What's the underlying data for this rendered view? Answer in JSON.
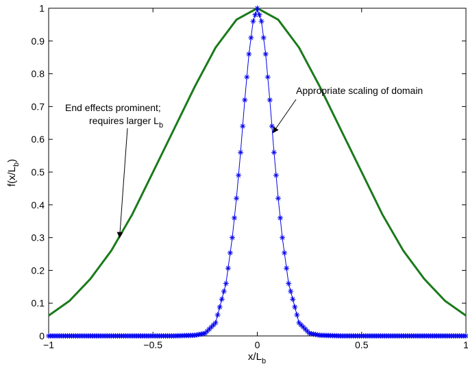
{
  "chart_data": {
    "type": "line",
    "title": "",
    "xlabel": {
      "main": "x/L",
      "sub": "b"
    },
    "ylabel": {
      "main": "f(x/L",
      "sub": "b",
      "tail": ")"
    },
    "xlim": [
      -1,
      1
    ],
    "ylim": [
      0,
      1
    ],
    "xticks": [
      -1,
      -0.5,
      0,
      0.5,
      1
    ],
    "xtick_labels": [
      "−1",
      "−0.5",
      "0",
      "0.5",
      "1"
    ],
    "yticks": [
      0,
      0.1,
      0.2,
      0.3,
      0.4,
      0.5,
      0.6,
      0.7,
      0.8,
      0.9,
      1
    ],
    "ytick_labels": [
      "0",
      "0.1",
      "0.2",
      "0.3",
      "0.4",
      "0.5",
      "0.6",
      "0.7",
      "0.8",
      "0.9",
      "1"
    ],
    "grid": false,
    "series": [
      {
        "key": "wide",
        "color": "#1a7a1a",
        "marker": "none",
        "x": [
          -1,
          -0.9,
          -0.8,
          -0.7,
          -0.6,
          -0.5,
          -0.4,
          -0.3,
          -0.2,
          -0.1,
          0,
          0.1,
          0.2,
          0.3,
          0.4,
          0.5,
          0.6,
          0.7,
          0.8,
          0.9,
          1
        ],
        "y": [
          0.062,
          0.107,
          0.174,
          0.26,
          0.37,
          0.5,
          0.63,
          0.76,
          0.88,
          0.965,
          1,
          0.965,
          0.88,
          0.76,
          0.63,
          0.5,
          0.37,
          0.26,
          0.174,
          0.107,
          0.062
        ]
      },
      {
        "key": "narrow",
        "color": "#0000ee",
        "marker": "asterisk",
        "x": [
          -1,
          -0.9,
          -0.8,
          -0.7,
          -0.6,
          -0.5,
          -0.4,
          -0.3,
          -0.25,
          -0.2,
          -0.15,
          -0.12,
          -0.1,
          -0.08,
          -0.06,
          -0.04,
          -0.02,
          0,
          0.02,
          0.04,
          0.06,
          0.08,
          0.1,
          0.12,
          0.15,
          0.2,
          0.25,
          0.3,
          0.4,
          0.5,
          0.6,
          0.7,
          0.8,
          0.9,
          1
        ],
        "y": [
          0,
          0,
          0,
          0,
          0,
          0,
          0,
          0.002,
          0.008,
          0.04,
          0.16,
          0.3,
          0.42,
          0.56,
          0.72,
          0.86,
          0.96,
          1,
          0.96,
          0.86,
          0.72,
          0.56,
          0.42,
          0.3,
          0.16,
          0.04,
          0.008,
          0.002,
          0,
          0,
          0,
          0,
          0,
          0,
          0
        ]
      }
    ],
    "annotations": [
      {
        "key": "end_effects",
        "lines": [
          "End effects prominent;"
        ],
        "line2_main": "requires larger L",
        "line2_sub": "b",
        "arrow_target": {
          "x": -0.66,
          "y": 0.3
        }
      },
      {
        "key": "scaling",
        "lines": [
          "Appropriate scaling of domain"
        ],
        "arrow_target": {
          "x": 0.075,
          "y": 0.62
        }
      }
    ]
  }
}
